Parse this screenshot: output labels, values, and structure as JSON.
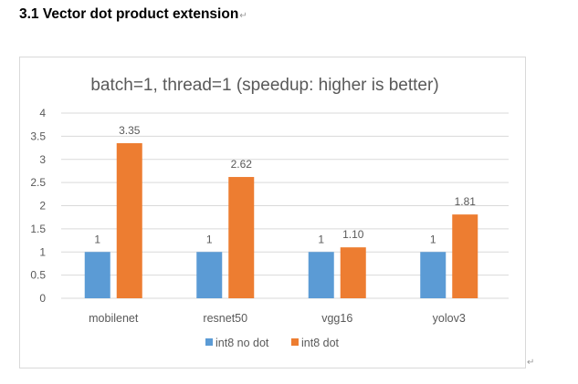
{
  "document": {
    "heading": "3.1 Vector dot product extension",
    "paragraph_mark": "↵",
    "end_mark": "↵"
  },
  "colors": {
    "series_no_dot": "#5b9bd5",
    "series_dot": "#ed7d31",
    "gridline": "#d9d9d9",
    "text": "#595959"
  },
  "chart_data": {
    "type": "bar",
    "title": "batch=1, thread=1 (speedup: higher is better)",
    "xlabel": "",
    "ylabel": "",
    "categories": [
      "mobilenet",
      "resnet50",
      "vgg16",
      "yolov3"
    ],
    "series": [
      {
        "name": "int8 no dot",
        "values": [
          1,
          1,
          1,
          1
        ],
        "labels": [
          "1",
          "1",
          "1",
          "1"
        ]
      },
      {
        "name": "int8 dot",
        "values": [
          3.35,
          2.62,
          1.1,
          1.81
        ],
        "labels": [
          "3.35",
          "2.62",
          "1.10",
          "1.81"
        ]
      }
    ],
    "ylim": [
      0,
      4
    ],
    "yticks": [
      "0",
      "0.5",
      "1",
      "1.5",
      "2",
      "2.5",
      "3",
      "3.5",
      "4"
    ],
    "grid": true,
    "legend_position": "bottom"
  }
}
